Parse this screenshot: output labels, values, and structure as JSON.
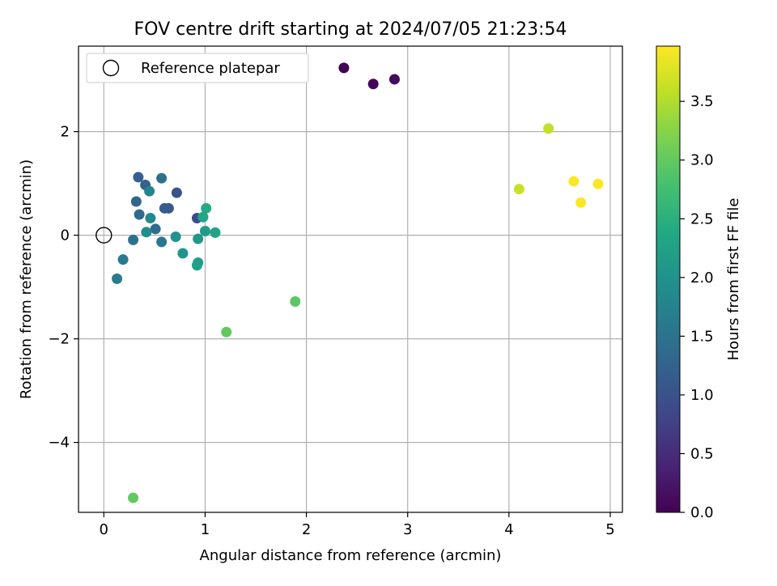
{
  "chart_data": {
    "type": "scatter",
    "title": "FOV centre drift starting at 2024/07/05 21:23:54",
    "xlabel": "Angular distance from reference (arcmin)",
    "ylabel": "Rotation from reference (arcmin)",
    "xlim": [
      -0.25,
      5.12
    ],
    "ylim": [
      -5.35,
      3.65
    ],
    "xticks": [
      0,
      1,
      2,
      3,
      4,
      5
    ],
    "yticks": [
      -4,
      -2,
      0,
      2
    ],
    "grid": true,
    "legend": {
      "position": "top-left",
      "entries": [
        "Reference platepar"
      ]
    },
    "reference_point": {
      "x": 0,
      "y": 0
    },
    "colorbar": {
      "label": "Hours from first FF file",
      "colormap": "viridis",
      "range": [
        0.0,
        3.97
      ],
      "ticks": [
        0.0,
        0.5,
        1.0,
        1.5,
        2.0,
        2.5,
        3.0,
        3.5
      ]
    },
    "points": [
      {
        "x": 2.37,
        "y": 3.23,
        "hours": 0.0
      },
      {
        "x": 2.66,
        "y": 2.92,
        "hours": 0.05
      },
      {
        "x": 2.87,
        "y": 3.01,
        "hours": 0.1
      },
      {
        "x": 0.92,
        "y": 0.33,
        "hours": 0.9
      },
      {
        "x": 0.72,
        "y": 0.82,
        "hours": 1.0
      },
      {
        "x": 0.64,
        "y": 0.52,
        "hours": 1.1
      },
      {
        "x": 0.6,
        "y": 0.52,
        "hours": 1.15
      },
      {
        "x": 0.34,
        "y": 1.12,
        "hours": 1.2
      },
      {
        "x": 0.41,
        "y": 0.97,
        "hours": 1.25
      },
      {
        "x": 0.32,
        "y": 0.65,
        "hours": 1.3
      },
      {
        "x": 0.35,
        "y": 0.4,
        "hours": 1.35
      },
      {
        "x": 0.51,
        "y": 0.12,
        "hours": 1.4
      },
      {
        "x": 0.57,
        "y": 1.1,
        "hours": 1.45
      },
      {
        "x": 0.29,
        "y": -0.09,
        "hours": 1.5
      },
      {
        "x": 0.57,
        "y": -0.13,
        "hours": 1.55
      },
      {
        "x": 0.19,
        "y": -0.47,
        "hours": 1.6
      },
      {
        "x": 0.13,
        "y": -0.84,
        "hours": 1.65
      },
      {
        "x": 0.45,
        "y": 0.85,
        "hours": 1.8
      },
      {
        "x": 0.46,
        "y": 0.33,
        "hours": 1.85
      },
      {
        "x": 0.42,
        "y": 0.06,
        "hours": 1.9
      },
      {
        "x": 0.71,
        "y": -0.03,
        "hours": 2.0
      },
      {
        "x": 0.78,
        "y": -0.35,
        "hours": 2.05
      },
      {
        "x": 0.93,
        "y": -0.07,
        "hours": 2.1
      },
      {
        "x": 1.0,
        "y": 0.08,
        "hours": 2.15
      },
      {
        "x": 0.93,
        "y": -0.53,
        "hours": 2.2
      },
      {
        "x": 0.92,
        "y": -0.58,
        "hours": 2.25
      },
      {
        "x": 1.1,
        "y": 0.05,
        "hours": 2.3
      },
      {
        "x": 0.98,
        "y": 0.35,
        "hours": 2.35
      },
      {
        "x": 1.01,
        "y": 0.52,
        "hours": 2.4
      },
      {
        "x": 1.89,
        "y": -1.28,
        "hours": 2.95
      },
      {
        "x": 1.21,
        "y": -1.87,
        "hours": 3.0
      },
      {
        "x": 0.29,
        "y": -5.07,
        "hours": 3.0
      },
      {
        "x": 4.1,
        "y": 0.89,
        "hours": 3.65
      },
      {
        "x": 4.39,
        "y": 2.06,
        "hours": 3.6
      },
      {
        "x": 4.64,
        "y": 1.04,
        "hours": 3.95
      },
      {
        "x": 4.71,
        "y": 0.63,
        "hours": 3.95
      },
      {
        "x": 4.88,
        "y": 0.99,
        "hours": 3.97
      }
    ]
  }
}
